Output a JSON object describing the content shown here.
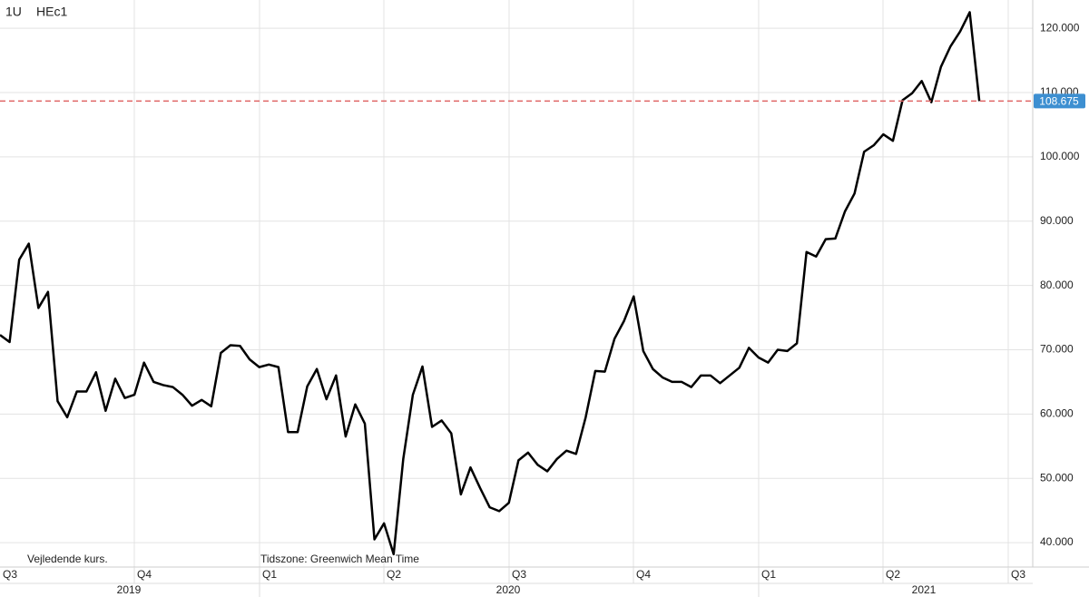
{
  "chart_data": {
    "type": "line",
    "symbol": "1U",
    "ric": "HEc1",
    "footnote": "Vejledende kurs.",
    "timezone": "Tidszone: Greenwich Mean Time",
    "quarters": [
      "Q3",
      "Q4",
      "Q1",
      "Q2",
      "Q3",
      "Q4",
      "Q1",
      "Q2",
      "Q3"
    ],
    "years": [
      "2019",
      "2020",
      "2021"
    ],
    "color": "#000000",
    "values": [
      72.3,
      71.2,
      84,
      86.5,
      76.5,
      79,
      62,
      59.5,
      63.5,
      63.5,
      66.5,
      60.5,
      65.5,
      62.5,
      63,
      68,
      65,
      64.5,
      64.2,
      63,
      61.3,
      62.2,
      61.2,
      69.5,
      70.7,
      70.6,
      68.5,
      67.3,
      67.7,
      67.3,
      57.2,
      57.2,
      64.3,
      67,
      62.3,
      66,
      56.5,
      61.5,
      58.5,
      40.5,
      43,
      38.2,
      53,
      63,
      67.4,
      58,
      59,
      57,
      47.5,
      51.7,
      48.5,
      45.5,
      44.9,
      46.2,
      52.8,
      54,
      52.1,
      51.1,
      53,
      54.3,
      53.8,
      59.5,
      66.7,
      66.6,
      71.7,
      74.5,
      78.3,
      69.8,
      67,
      65.7,
      65,
      65,
      64.2,
      66,
      66,
      64.8,
      66,
      67.2,
      70.3,
      68.8,
      68,
      70,
      69.8,
      71,
      85.2,
      84.5,
      87.2,
      87.3,
      91.5,
      94.3,
      100.8,
      101.8,
      103.5,
      102.5,
      108.8,
      109.9,
      111.8,
      108.5,
      114,
      117.2,
      119.5,
      122.5,
      108.675
    ],
    "last_price": 108.675,
    "last_price_color": "#e06666",
    "last_price_box_color": "#3d8fd1",
    "ylim": [
      36.2,
      124.4
    ],
    "yticks": [
      {
        "value": 40,
        "label": "40.000"
      },
      {
        "value": 50,
        "label": "50.000"
      },
      {
        "value": 60,
        "label": "60.000"
      },
      {
        "value": 70,
        "label": "70.000"
      },
      {
        "value": 80,
        "label": "80.000"
      },
      {
        "value": 90,
        "label": "90.000"
      },
      {
        "value": 100,
        "label": "100.000"
      },
      {
        "value": 110,
        "label": "110.000"
      },
      {
        "value": 120,
        "label": "120.000"
      }
    ],
    "grid": true
  }
}
